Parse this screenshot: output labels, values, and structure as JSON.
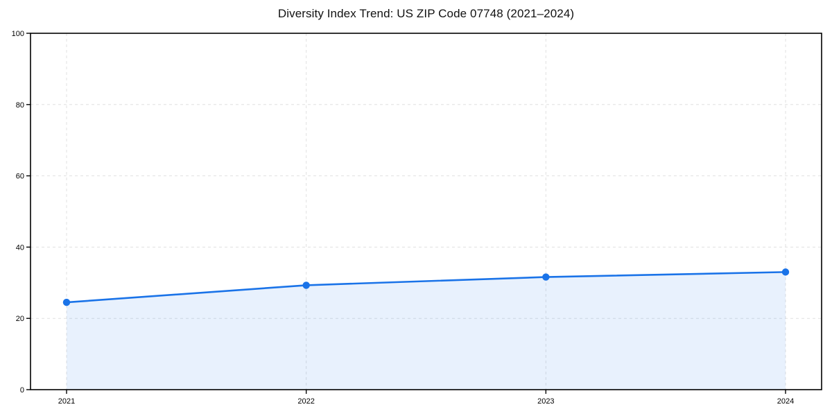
{
  "chart_data": {
    "type": "area",
    "title": "Diversity Index Trend: US ZIP Code 07748 (2021–2024)",
    "categories": [
      "2021",
      "2022",
      "2023",
      "2024"
    ],
    "values": [
      24.5,
      29.3,
      31.6,
      33.0
    ],
    "xlabel": "",
    "ylabel": "",
    "ylim": [
      0,
      100
    ],
    "yticks": [
      0,
      20,
      40,
      60,
      80,
      100
    ],
    "grid": true,
    "grid_style": "dashed",
    "legend": "none",
    "marker": "circle",
    "colors": {
      "line": "#1a73e8",
      "marker": "#1a73e8",
      "fill": "rgba(26,115,232,0.10)",
      "grid": "#e0e0e0",
      "frame": "#000000",
      "tick_text": "#000000",
      "title_text": "#111111",
      "background": "#ffffff"
    }
  }
}
